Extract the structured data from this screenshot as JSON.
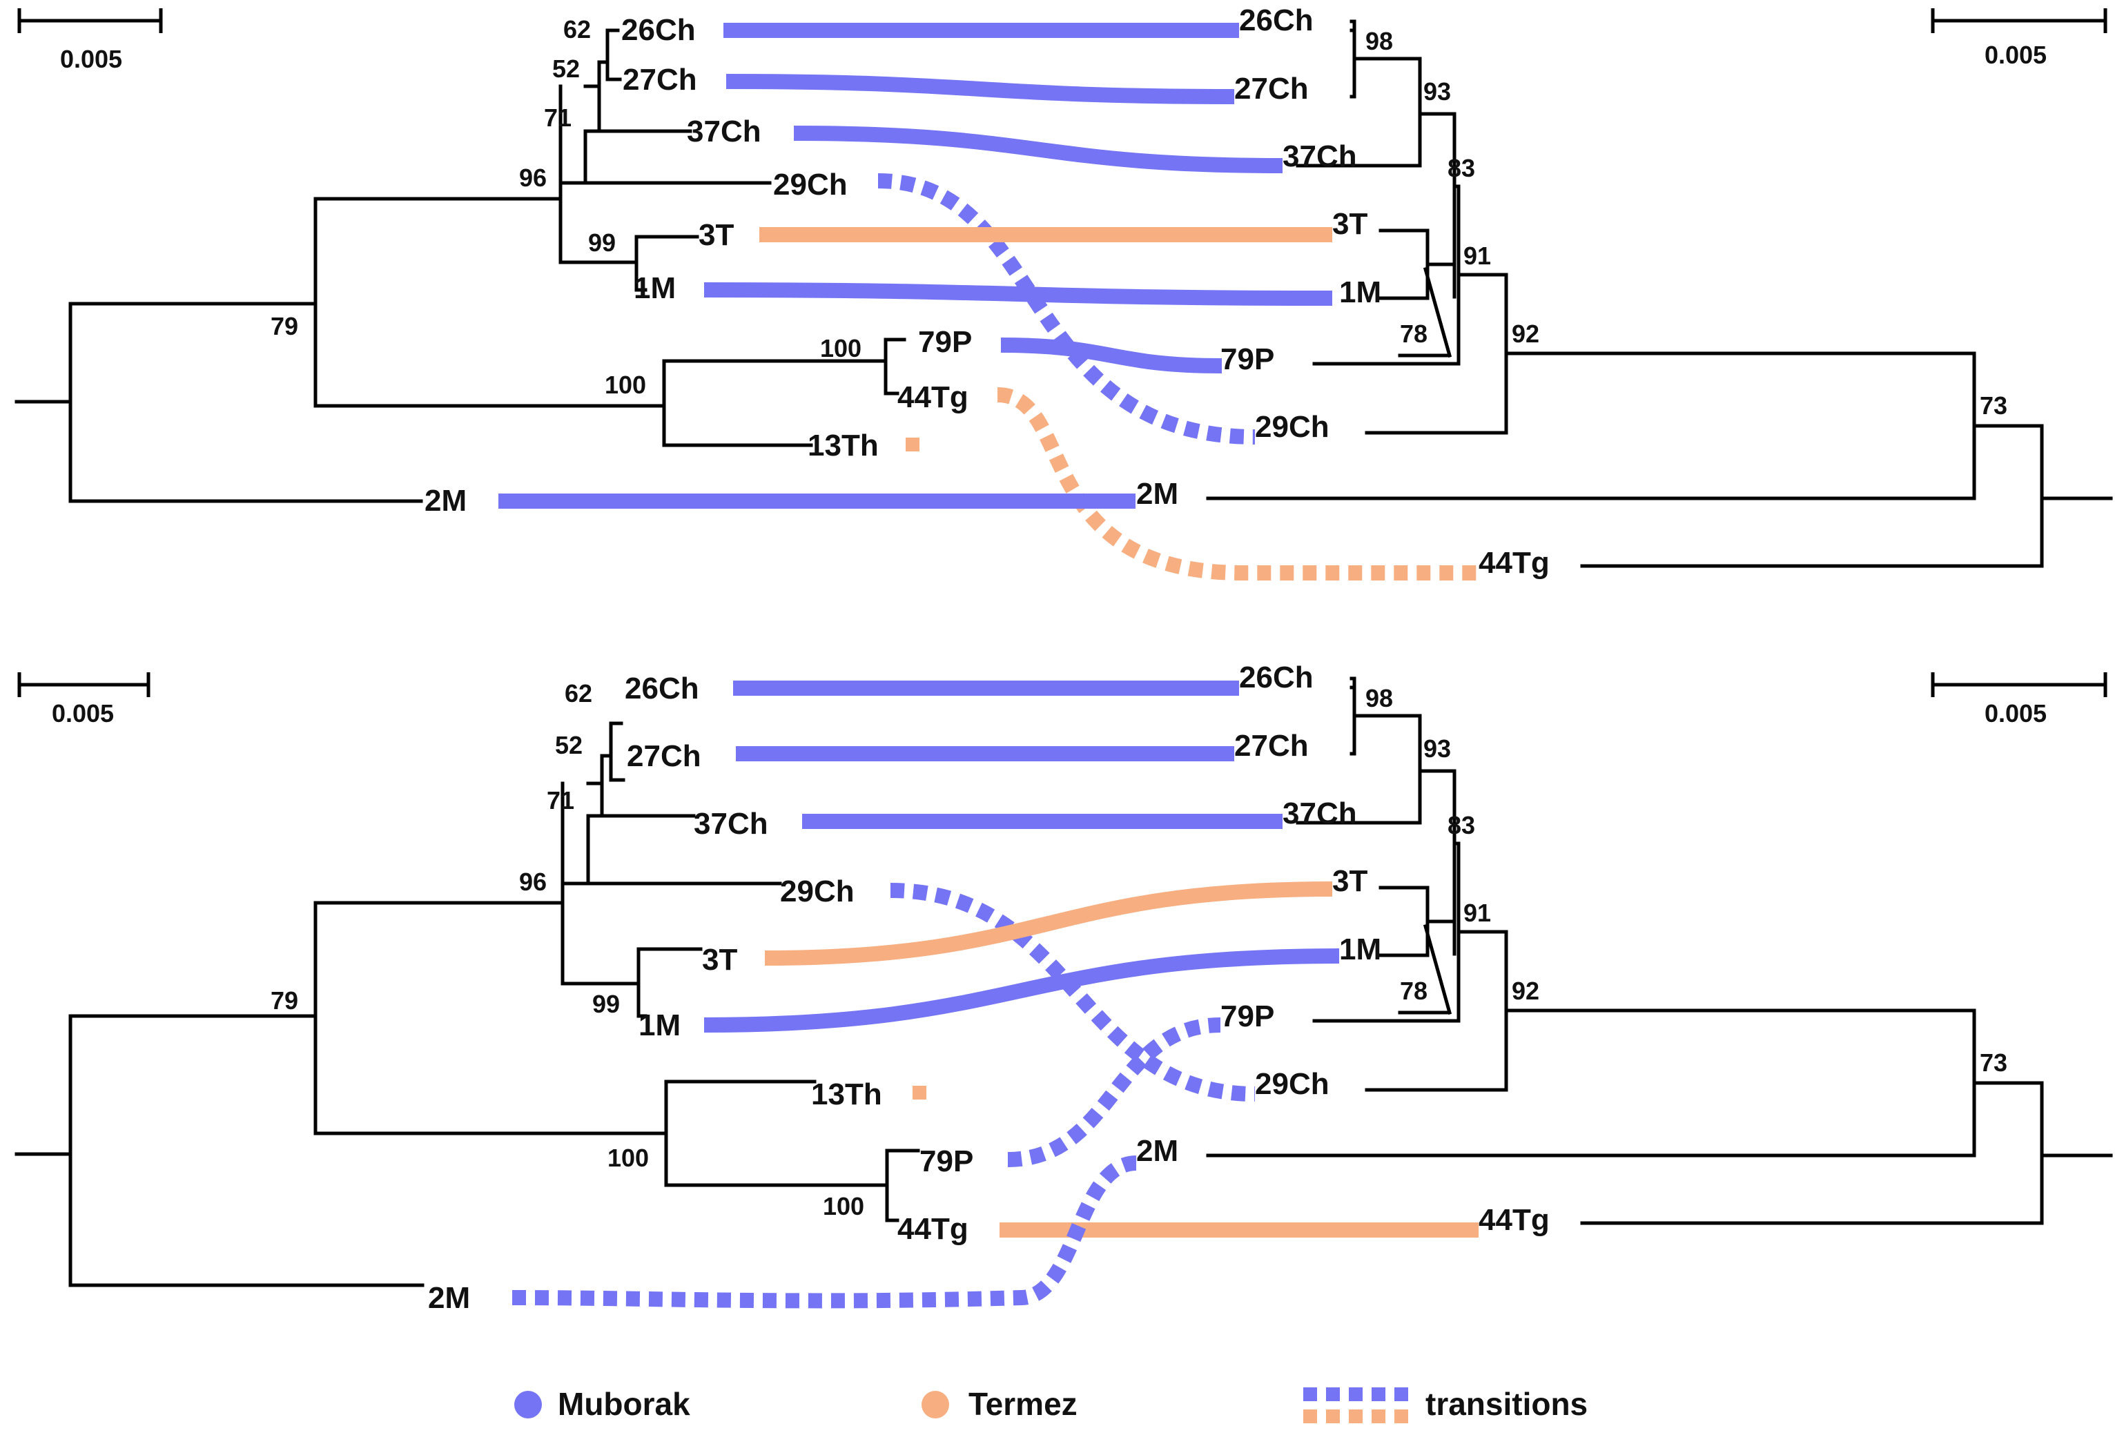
{
  "colors": {
    "muborak": "#7474F4",
    "termez": "#F7AE80",
    "branch": "#000000"
  },
  "scale": {
    "label": "0.005"
  },
  "legend": {
    "muborak": "Muborak",
    "termez": "Termez",
    "transitions": "transitions"
  },
  "panel_top": {
    "left_tree": {
      "leaves": [
        "26Ch",
        "27Ch",
        "37Ch",
        "29Ch",
        "3T",
        "1M",
        "79P",
        "44Tg",
        "13Th",
        "2M"
      ],
      "support": [
        "62",
        "52",
        "71",
        "96",
        "99",
        "79",
        "100",
        "100"
      ]
    },
    "right_tree": {
      "leaves": [
        "26Ch",
        "27Ch",
        "37Ch",
        "3T",
        "1M",
        "79P",
        "29Ch",
        "2M",
        "44Tg"
      ],
      "support": [
        "98",
        "93",
        "83",
        "91",
        "78",
        "92",
        "73"
      ]
    },
    "links": [
      {
        "taxon": "26Ch",
        "group": "Muborak",
        "type": "solid"
      },
      {
        "taxon": "27Ch",
        "group": "Muborak",
        "type": "solid"
      },
      {
        "taxon": "37Ch",
        "group": "Muborak",
        "type": "solid"
      },
      {
        "taxon": "29Ch",
        "group": "Muborak",
        "type": "transition"
      },
      {
        "taxon": "3T",
        "group": "Termez",
        "type": "solid"
      },
      {
        "taxon": "1M",
        "group": "Muborak",
        "type": "solid"
      },
      {
        "taxon": "79P",
        "group": "Muborak",
        "type": "solid"
      },
      {
        "taxon": "44Tg",
        "group": "Termez",
        "type": "transition"
      },
      {
        "taxon": "2M",
        "group": "Muborak",
        "type": "solid"
      }
    ]
  },
  "panel_bottom": {
    "left_tree": {
      "leaves": [
        "26Ch",
        "27Ch",
        "37Ch",
        "29Ch",
        "3T",
        "1M",
        "13Th",
        "79P",
        "44Tg",
        "2M"
      ],
      "support": [
        "62",
        "52",
        "71",
        "96",
        "99",
        "79",
        "100",
        "100"
      ]
    },
    "right_tree": {
      "leaves": [
        "26Ch",
        "27Ch",
        "37Ch",
        "3T",
        "1M",
        "79P",
        "29Ch",
        "2M",
        "44Tg"
      ],
      "support": [
        "98",
        "93",
        "83",
        "91",
        "78",
        "92",
        "73"
      ]
    },
    "links": [
      {
        "taxon": "26Ch",
        "group": "Muborak",
        "type": "solid"
      },
      {
        "taxon": "27Ch",
        "group": "Muborak",
        "type": "solid"
      },
      {
        "taxon": "37Ch",
        "group": "Muborak",
        "type": "solid"
      },
      {
        "taxon": "29Ch",
        "group": "Muborak",
        "type": "transition"
      },
      {
        "taxon": "3T",
        "group": "Termez",
        "type": "solid"
      },
      {
        "taxon": "1M",
        "group": "Muborak",
        "type": "solid"
      },
      {
        "taxon": "79P",
        "group": "Muborak",
        "type": "transition"
      },
      {
        "taxon": "44Tg",
        "group": "Termez",
        "type": "solid"
      },
      {
        "taxon": "2M",
        "group": "Muborak",
        "type": "transition"
      }
    ]
  }
}
